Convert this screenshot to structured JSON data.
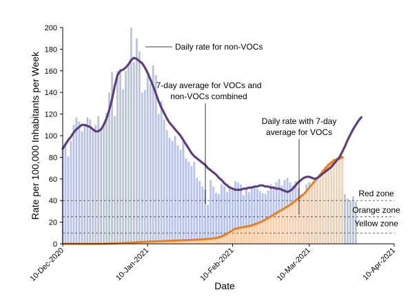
{
  "chart_data": {
    "type": "bar",
    "xlabel": "Date",
    "ylabel": "Rate per 100,000 Inhabitants per Week",
    "ylim": [
      0,
      200
    ],
    "yticks": [
      0,
      20,
      40,
      60,
      80,
      100,
      120,
      140,
      160,
      180,
      200
    ],
    "x_tick_labels": [
      "10-Dec-2020",
      "10-Jan-2021",
      "10-Feb-2021",
      "10-Mar-2021",
      "10-Apr-2021"
    ],
    "x_tick_dates": [
      "2020-12-10",
      "2021-01-10",
      "2021-02-10",
      "2021-03-10",
      "2021-04-10"
    ],
    "x_range": [
      "2020-12-10",
      "2021-04-10"
    ],
    "grid": false,
    "colors": {
      "bars_non_voc": "#b9c3e6",
      "bars_voc": "#fbcfa8",
      "avg_combined_line": "#5b3f7e",
      "voc_line": "#f07c1c"
    },
    "zones": [
      {
        "label": "Red zone",
        "value": 40
      },
      {
        "label": "Orange zone",
        "value": 25
      },
      {
        "label": "Yellow zone",
        "value": 10
      }
    ],
    "annotations": {
      "non_voc_daily": "Daily rate for non-VOCs",
      "avg_combined": [
        "7-day average for VOCs and",
        "non-VOCs combined"
      ],
      "voc_daily": [
        "Daily rate with 7-day",
        "average for VOCs"
      ]
    },
    "series": [
      {
        "name": "Daily rate for non-VOCs",
        "kind": "bars",
        "start_date": "2020-12-10",
        "values": [
          88,
          94,
          81,
          95,
          110,
          117,
          113,
          104,
          111,
          117,
          115,
          105,
          110,
          118,
          105,
          112,
          121,
          140,
          159,
          118,
          160,
          162,
          143,
          160,
          165,
          200,
          168,
          190,
          178,
          140,
          142,
          155,
          148,
          165,
          156,
          120,
          132,
          115,
          105,
          98,
          95,
          100,
          91,
          87,
          95,
          79,
          76,
          72,
          76,
          61,
          58,
          53,
          50,
          36,
          59,
          53,
          47,
          46,
          55,
          53,
          48,
          53,
          50,
          58,
          57,
          55,
          45,
          50,
          48,
          51,
          52,
          51,
          49,
          47,
          46,
          49,
          55,
          53,
          57,
          60,
          54,
          59,
          61,
          57,
          54,
          58,
          52,
          46,
          44,
          55,
          57,
          54,
          50,
          52,
          48,
          41,
          36,
          30,
          36,
          42,
          41,
          44,
          51,
          46,
          42,
          40,
          44,
          39
        ]
      },
      {
        "name": "Daily rate with 7-day average for VOCs",
        "kind": "bars+line",
        "start_date": "2020-12-10",
        "values": [
          0,
          0,
          0,
          0,
          0,
          0,
          0,
          0,
          0,
          0,
          0,
          0,
          0,
          0,
          0,
          0,
          0.2,
          0.3,
          0.3,
          0.4,
          0.5,
          0.6,
          0.7,
          0.8,
          1,
          1.1,
          1.2,
          1.4,
          1.6,
          1.7,
          1.8,
          2,
          2.1,
          2.2,
          2.3,
          2.4,
          2.5,
          2.6,
          2.7,
          2.8,
          2.9,
          3,
          3.1,
          3.2,
          3.3,
          3.4,
          3.5,
          3.6,
          3.7,
          3.9,
          4,
          4.2,
          4.3,
          4.5,
          4.7,
          5,
          5.4,
          6,
          6.8,
          8,
          9.5,
          11,
          12.5,
          14,
          14.5,
          15,
          15.5,
          16,
          16.5,
          17,
          18,
          19,
          20,
          21,
          22.5,
          24,
          25.5,
          27,
          28.5,
          30,
          31.5,
          33,
          34.5,
          36,
          38,
          40,
          42,
          44,
          46,
          49,
          52,
          55,
          58,
          61,
          64,
          67,
          70,
          73,
          75,
          77,
          78,
          79,
          80
        ],
        "weekly_avg_end": [
          80,
          80,
          80,
          80,
          80,
          80,
          80,
          80,
          80
        ]
      },
      {
        "name": "7-day average for VOCs and non-VOCs combined",
        "kind": "line",
        "start_date": "2020-12-10",
        "values": [
          88,
          92,
          96,
          99,
          103,
          106,
          108,
          110,
          110,
          109,
          108,
          106,
          104,
          104,
          106,
          110,
          116,
          124,
          134,
          146,
          156,
          160,
          161,
          163,
          166,
          170,
          172,
          171,
          169,
          167,
          163,
          158,
          152,
          146,
          139,
          132,
          126,
          121,
          116,
          112,
          109,
          106,
          103,
          100,
          96,
          92,
          88,
          84,
          81,
          79,
          77,
          75,
          73,
          70,
          68,
          66,
          64,
          61,
          59,
          56,
          54,
          52,
          51,
          50,
          50,
          50,
          51,
          51,
          52,
          52,
          53,
          53,
          54,
          54,
          53,
          53,
          52,
          52,
          51,
          51,
          50,
          49,
          48,
          49,
          51,
          54,
          57,
          59,
          61,
          62,
          62,
          61,
          60,
          61,
          63,
          65,
          67,
          69,
          71,
          74,
          77,
          80,
          85,
          90,
          96,
          101,
          106,
          110,
          114,
          117
        ]
      }
    ]
  }
}
